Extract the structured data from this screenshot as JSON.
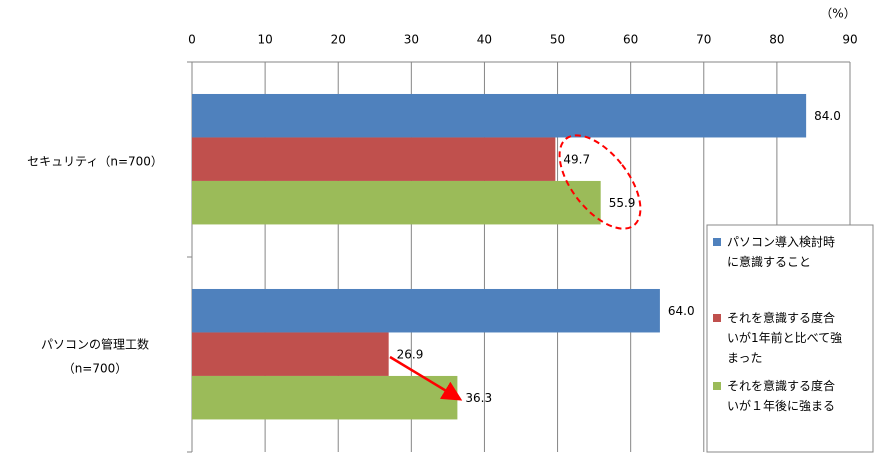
{
  "chart_data": {
    "type": "hbar",
    "unit_label": "（%）",
    "categories": [
      "セキュリティ（n=700）",
      "パソコンの管理工数\n（n=700）"
    ],
    "series": [
      {
        "name": "パソコン導入検討時\nに意識すること",
        "color": "#4f81bd",
        "values": [
          84.0,
          64.0
        ],
        "value_labels": [
          "84.0",
          "64.0"
        ]
      },
      {
        "name": "それを意識する度合\nいが1年前と比べて強\nまった",
        "color": "#c0504d",
        "values": [
          49.7,
          26.9
        ],
        "value_labels": [
          "49.7",
          "26.9"
        ]
      },
      {
        "name": "それを意識する度合\nいが１年後に強まる",
        "color": "#9bbb59",
        "values": [
          55.9,
          36.3
        ],
        "value_labels": [
          "55.9",
          "36.3"
        ]
      }
    ],
    "xlim": [
      0,
      90
    ],
    "xticks": [
      0,
      10,
      20,
      30,
      40,
      50,
      60,
      70,
      80,
      90
    ],
    "grid": true,
    "legend": "right"
  }
}
